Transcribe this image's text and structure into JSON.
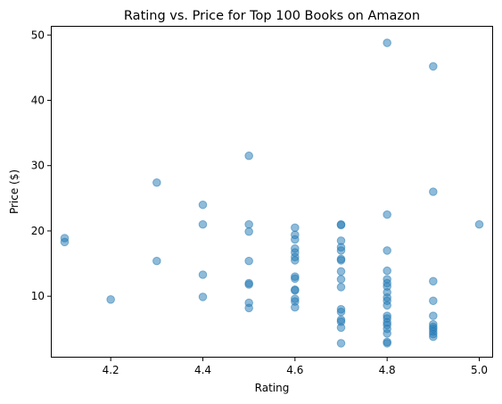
{
  "chart_data": {
    "type": "scatter",
    "title": "Rating vs. Price for Top 100 Books on Amazon",
    "xlabel": "Rating",
    "ylabel": "Price ($)",
    "xlim": [
      4.07,
      5.03
    ],
    "ylim": [
      0.6,
      51.4
    ],
    "xticks": [
      4.2,
      4.4,
      4.6,
      4.8,
      5.0
    ],
    "xtick_labels": [
      "4.2",
      "4.4",
      "4.6",
      "4.8",
      "5.0"
    ],
    "yticks": [
      10,
      20,
      30,
      40,
      50
    ],
    "ytick_labels": [
      "10",
      "20",
      "30",
      "40",
      "50"
    ],
    "grid": false,
    "marker_color": "#1f77b4",
    "marker_alpha": 0.5,
    "points": [
      {
        "x": 4.1,
        "y": 18.9
      },
      {
        "x": 4.1,
        "y": 18.3
      },
      {
        "x": 4.2,
        "y": 9.5
      },
      {
        "x": 4.3,
        "y": 27.4
      },
      {
        "x": 4.3,
        "y": 15.4
      },
      {
        "x": 4.4,
        "y": 24.0
      },
      {
        "x": 4.4,
        "y": 21.0
      },
      {
        "x": 4.4,
        "y": 13.3
      },
      {
        "x": 4.4,
        "y": 9.9
      },
      {
        "x": 4.5,
        "y": 31.5
      },
      {
        "x": 4.5,
        "y": 21.0
      },
      {
        "x": 4.5,
        "y": 19.9
      },
      {
        "x": 4.5,
        "y": 15.4
      },
      {
        "x": 4.5,
        "y": 12.0
      },
      {
        "x": 4.5,
        "y": 11.8
      },
      {
        "x": 4.5,
        "y": 9.0
      },
      {
        "x": 4.5,
        "y": 8.2
      },
      {
        "x": 4.6,
        "y": 20.5
      },
      {
        "x": 4.6,
        "y": 19.4
      },
      {
        "x": 4.6,
        "y": 18.7
      },
      {
        "x": 4.6,
        "y": 17.3
      },
      {
        "x": 4.6,
        "y": 16.7
      },
      {
        "x": 4.6,
        "y": 16.0
      },
      {
        "x": 4.6,
        "y": 15.5
      },
      {
        "x": 4.6,
        "y": 13.0
      },
      {
        "x": 4.6,
        "y": 12.7
      },
      {
        "x": 4.6,
        "y": 11.0
      },
      {
        "x": 4.6,
        "y": 10.9
      },
      {
        "x": 4.6,
        "y": 9.6
      },
      {
        "x": 4.6,
        "y": 9.2
      },
      {
        "x": 4.6,
        "y": 8.3
      },
      {
        "x": 4.7,
        "y": 21.0
      },
      {
        "x": 4.7,
        "y": 20.9
      },
      {
        "x": 4.7,
        "y": 18.5
      },
      {
        "x": 4.7,
        "y": 17.5
      },
      {
        "x": 4.7,
        "y": 17.0
      },
      {
        "x": 4.7,
        "y": 15.7
      },
      {
        "x": 4.7,
        "y": 15.5
      },
      {
        "x": 4.7,
        "y": 13.8
      },
      {
        "x": 4.7,
        "y": 12.6
      },
      {
        "x": 4.7,
        "y": 11.4
      },
      {
        "x": 4.7,
        "y": 8.0
      },
      {
        "x": 4.7,
        "y": 7.6
      },
      {
        "x": 4.7,
        "y": 6.4
      },
      {
        "x": 4.7,
        "y": 6.1
      },
      {
        "x": 4.7,
        "y": 5.2
      },
      {
        "x": 4.7,
        "y": 2.8
      },
      {
        "x": 4.8,
        "y": 48.8
      },
      {
        "x": 4.8,
        "y": 22.5
      },
      {
        "x": 4.8,
        "y": 17.0
      },
      {
        "x": 4.8,
        "y": 13.9
      },
      {
        "x": 4.8,
        "y": 12.6
      },
      {
        "x": 4.8,
        "y": 12.0
      },
      {
        "x": 4.8,
        "y": 11.5
      },
      {
        "x": 4.8,
        "y": 10.6
      },
      {
        "x": 4.8,
        "y": 9.8
      },
      {
        "x": 4.8,
        "y": 9.3
      },
      {
        "x": 4.8,
        "y": 8.6
      },
      {
        "x": 4.8,
        "y": 7.0
      },
      {
        "x": 4.8,
        "y": 6.6
      },
      {
        "x": 4.8,
        "y": 6.0
      },
      {
        "x": 4.8,
        "y": 5.6
      },
      {
        "x": 4.8,
        "y": 5.0
      },
      {
        "x": 4.8,
        "y": 4.3
      },
      {
        "x": 4.8,
        "y": 3.0
      },
      {
        "x": 4.8,
        "y": 2.8
      },
      {
        "x": 4.9,
        "y": 45.2
      },
      {
        "x": 4.9,
        "y": 26.0
      },
      {
        "x": 4.9,
        "y": 12.3
      },
      {
        "x": 4.9,
        "y": 9.3
      },
      {
        "x": 4.9,
        "y": 7.0
      },
      {
        "x": 4.9,
        "y": 5.7
      },
      {
        "x": 4.9,
        "y": 5.3
      },
      {
        "x": 4.9,
        "y": 5.0
      },
      {
        "x": 4.9,
        "y": 4.6
      },
      {
        "x": 4.9,
        "y": 4.2
      },
      {
        "x": 4.9,
        "y": 3.8
      },
      {
        "x": 5.0,
        "y": 21.0
      }
    ]
  }
}
